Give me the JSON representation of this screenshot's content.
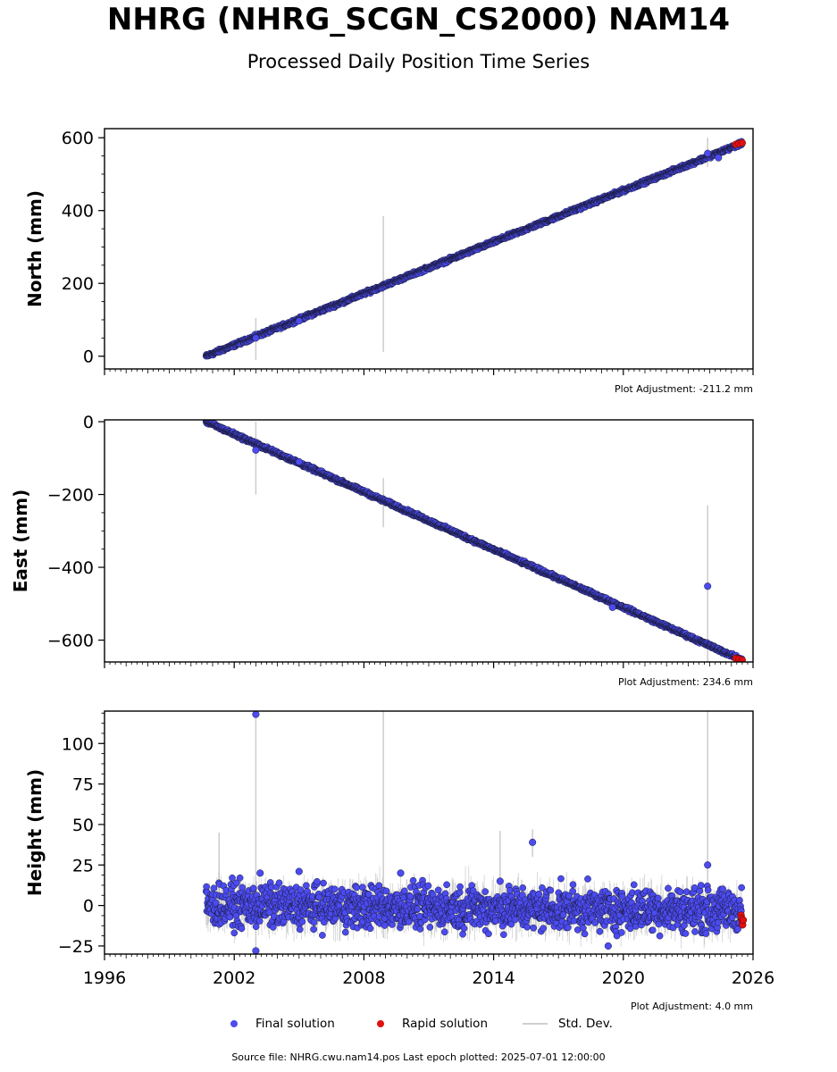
{
  "title": "NHRG (NHRG_SCGN_CS2000) NAM14",
  "subtitle": "Processed Daily Position Time Series",
  "source_text": "Source file: NHRG.cwu.nam14.pos  Last epoch plotted: 2025-07-01 12:00:00",
  "colors": {
    "final": "#4b4bf0",
    "rapid": "#e01010",
    "std": "#cccccc",
    "edge": "#1a1a3a"
  },
  "legend": [
    {
      "label": "Final solution",
      "symbol": "dot",
      "color": "#4b4bf0"
    },
    {
      "label": "Rapid solution",
      "symbol": "dot",
      "color": "#e01010"
    },
    {
      "label": "Std. Dev.",
      "symbol": "line",
      "color": "#cccccc"
    }
  ],
  "chart_data": [
    {
      "type": "scatter",
      "ylabel": "North (mm)",
      "adjustment": "Plot Adjustment: -211.2 mm",
      "xlim": [
        1996,
        2026
      ],
      "ylim": [
        -35,
        625
      ],
      "yticks": [
        0,
        200,
        400,
        600
      ],
      "ytick_labels": [
        "0",
        "200",
        "400",
        "600"
      ],
      "x_tick_labels_shown": false,
      "trend": {
        "x_start": 2000.7,
        "x_end": 2025.5,
        "y_start": 0,
        "y_end": 585
      },
      "noise": 3,
      "final_outliers": [
        [
          2003.0,
          50
        ],
        [
          2005.0,
          97
        ],
        [
          2023.9,
          557
        ],
        [
          2024.4,
          545
        ]
      ],
      "rapid_points": [
        [
          2025.2,
          582
        ],
        [
          2025.35,
          584
        ],
        [
          2025.5,
          586
        ]
      ],
      "std_bars": [
        {
          "x": 2003.0,
          "low": -10,
          "high": 105
        },
        {
          "x": 2008.9,
          "low": 12,
          "high": 385
        },
        {
          "x": 2023.9,
          "low": 520,
          "high": 600
        }
      ]
    },
    {
      "type": "scatter",
      "ylabel": "East (mm)",
      "adjustment": "Plot Adjustment: 234.6 mm",
      "xlim": [
        1996,
        2026
      ],
      "ylim": [
        -660,
        5
      ],
      "yticks": [
        0,
        -200,
        -400,
        -600
      ],
      "ytick_labels": [
        "0",
        "−200",
        "−400",
        "−600"
      ],
      "x_tick_labels_shown": false,
      "trend": {
        "x_start": 2000.7,
        "x_end": 2025.5,
        "y_start": 0,
        "y_end": -655
      },
      "noise": 3,
      "final_outliers": [
        [
          2003.0,
          -78
        ],
        [
          2005.0,
          -110
        ],
        [
          2023.9,
          -452
        ],
        [
          2019.5,
          -510
        ]
      ],
      "rapid_points": [
        [
          2025.2,
          -650
        ],
        [
          2025.35,
          -652
        ],
        [
          2025.5,
          -655
        ]
      ],
      "std_bars": [
        {
          "x": 2003.0,
          "low": -200,
          "high": 0
        },
        {
          "x": 2008.9,
          "low": -290,
          "high": -155
        },
        {
          "x": 2023.9,
          "low": -660,
          "high": -230
        }
      ]
    },
    {
      "type": "scatter",
      "ylabel": "Height (mm)",
      "adjustment": "Plot Adjustment: 4.0 mm",
      "xlabel": "",
      "xlim": [
        1996,
        2026
      ],
      "ylim": [
        -30,
        120
      ],
      "yticks": [
        -25,
        0,
        25,
        50,
        75,
        100
      ],
      "ytick_labels": [
        "−25",
        "0",
        "25",
        "50",
        "75",
        "100"
      ],
      "xticks": [
        1996,
        2002,
        2008,
        2014,
        2020,
        2026
      ],
      "xtick_labels": [
        "1996",
        "2002",
        "2008",
        "2014",
        "2020",
        "2026"
      ],
      "x_tick_labels_shown": true,
      "trend": {
        "x_start": 2000.7,
        "x_end": 2025.5,
        "y_start": 0,
        "y_end": -3
      },
      "noise": 8,
      "final_outliers": [
        [
          2003.0,
          118
        ],
        [
          2003.0,
          -28
        ],
        [
          2003.2,
          20
        ],
        [
          2005.0,
          21
        ],
        [
          2009.7,
          20
        ],
        [
          2014.3,
          15
        ],
        [
          2015.8,
          39
        ],
        [
          2023.9,
          25
        ],
        [
          2019.3,
          -25
        ]
      ],
      "rapid_points": [
        [
          2025.45,
          -6
        ],
        [
          2025.48,
          -8
        ],
        [
          2025.5,
          -10
        ],
        [
          2025.52,
          -12
        ],
        [
          2025.55,
          -9
        ]
      ],
      "std_bars": [
        {
          "x": 2001.3,
          "low": -15,
          "high": 45
        },
        {
          "x": 2003.0,
          "low": -30,
          "high": 120
        },
        {
          "x": 2008.9,
          "low": -20,
          "high": 120
        },
        {
          "x": 2014.3,
          "low": -10,
          "high": 46
        },
        {
          "x": 2015.8,
          "low": 30,
          "high": 47
        },
        {
          "x": 2023.9,
          "low": -20,
          "high": 120
        }
      ]
    }
  ]
}
